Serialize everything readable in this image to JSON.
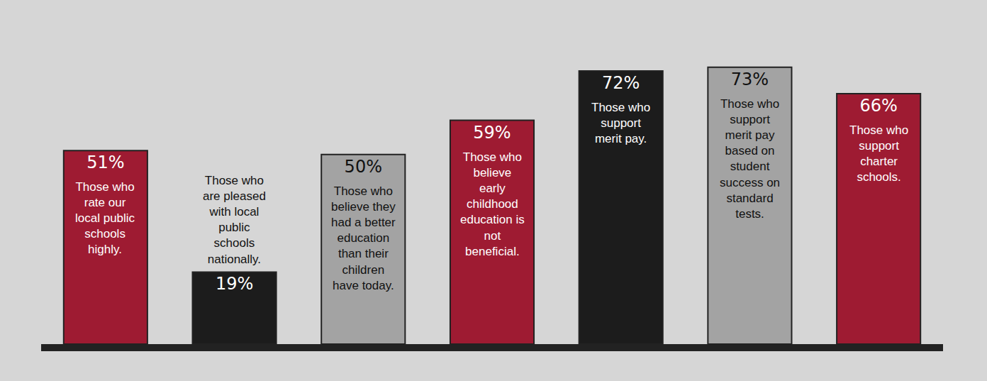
{
  "chart_data": {
    "type": "bar",
    "categories": [
      "Those who rate our local public schools highly.",
      "Those who are pleased with local public schools nationally.",
      "Those who believe they had a better education than their children have today.",
      "Those who believe early childhood education is not beneficial.",
      "Those who support merit pay.",
      "Those who support merit pay based on student success on standard tests.",
      "Those who support charter schools."
    ],
    "values": [
      51,
      19,
      50,
      59,
      72,
      73,
      66
    ],
    "value_labels": [
      "51%",
      "19%",
      "50%",
      "59%",
      "72%",
      "73%",
      "66%"
    ],
    "colors": [
      "#9e1b32",
      "#1c1c1c",
      "#a3a3a3",
      "#9e1b32",
      "#1c1c1c",
      "#a3a3a3",
      "#9e1b32"
    ],
    "ylim": [
      0,
      75
    ],
    "grid": false,
    "data_labels": true,
    "tick_labels": false
  }
}
